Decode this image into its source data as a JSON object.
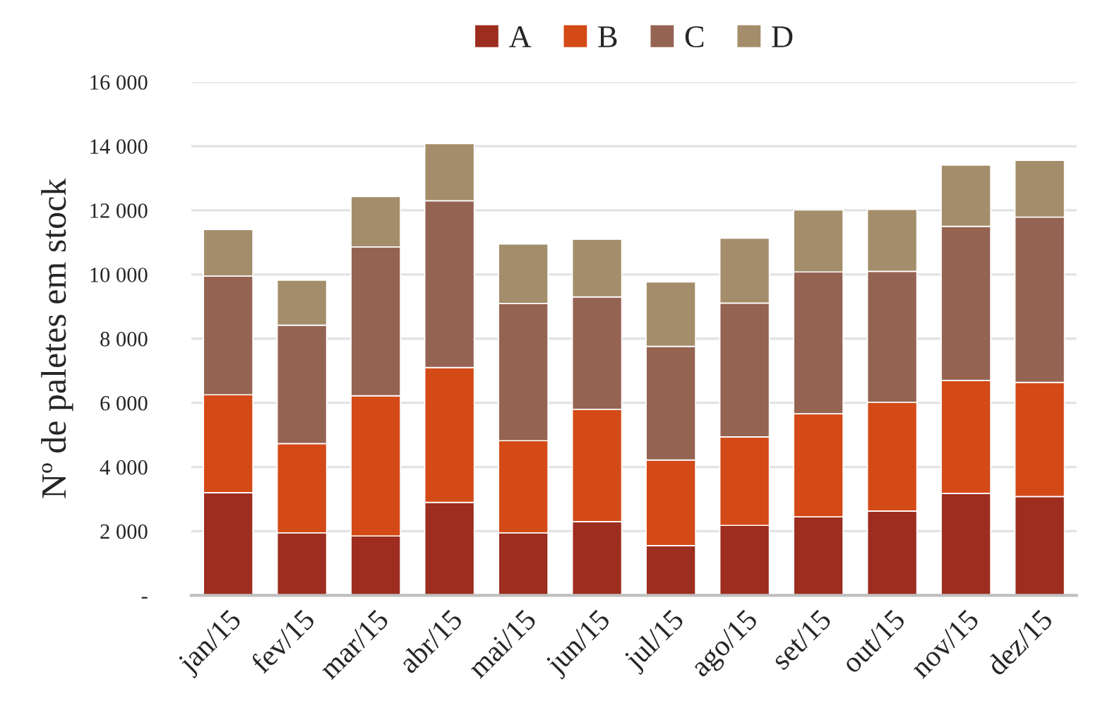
{
  "chart_data": {
    "type": "bar",
    "stacked": true,
    "categories": [
      "jan/15",
      "fev/15",
      "mar/15",
      "abr/15",
      "mai/15",
      "jun/15",
      "jul/15",
      "ago/15",
      "set/15",
      "out/15",
      "nov/15",
      "dez/15"
    ],
    "series": [
      {
        "name": "A",
        "color": "#9c2d1f",
        "values": [
          3200,
          1950,
          1850,
          2900,
          1950,
          2300,
          1550,
          2180,
          2450,
          2630,
          3180,
          3080
        ]
      },
      {
        "name": "B",
        "color": "#d44a17",
        "values": [
          3050,
          2780,
          4370,
          4200,
          2870,
          3500,
          2670,
          2760,
          3210,
          3390,
          3520,
          3560
        ]
      },
      {
        "name": "C",
        "color": "#956352",
        "values": [
          3700,
          3690,
          4640,
          5200,
          4280,
          3500,
          3540,
          4170,
          4420,
          4080,
          4800,
          5150
        ]
      },
      {
        "name": "D",
        "color": "#a48d6a",
        "values": [
          1450,
          1400,
          1570,
          1780,
          1850,
          1800,
          2010,
          2020,
          1930,
          1930,
          1910,
          1770
        ]
      }
    ],
    "ylabel": "Nº de paletes em stock",
    "ylim": [
      0,
      16000
    ],
    "yticks": [
      {
        "value": 0,
        "label": "-"
      },
      {
        "value": 2000,
        "label": "2 000"
      },
      {
        "value": 4000,
        "label": "4 000"
      },
      {
        "value": 6000,
        "label": "6 000"
      },
      {
        "value": 8000,
        "label": "8 000"
      },
      {
        "value": 10000,
        "label": "10 000"
      },
      {
        "value": 12000,
        "label": "12 000"
      },
      {
        "value": 14000,
        "label": "14 000"
      },
      {
        "value": 16000,
        "label": "16 000"
      }
    ],
    "grid": "y",
    "legend": "top"
  }
}
